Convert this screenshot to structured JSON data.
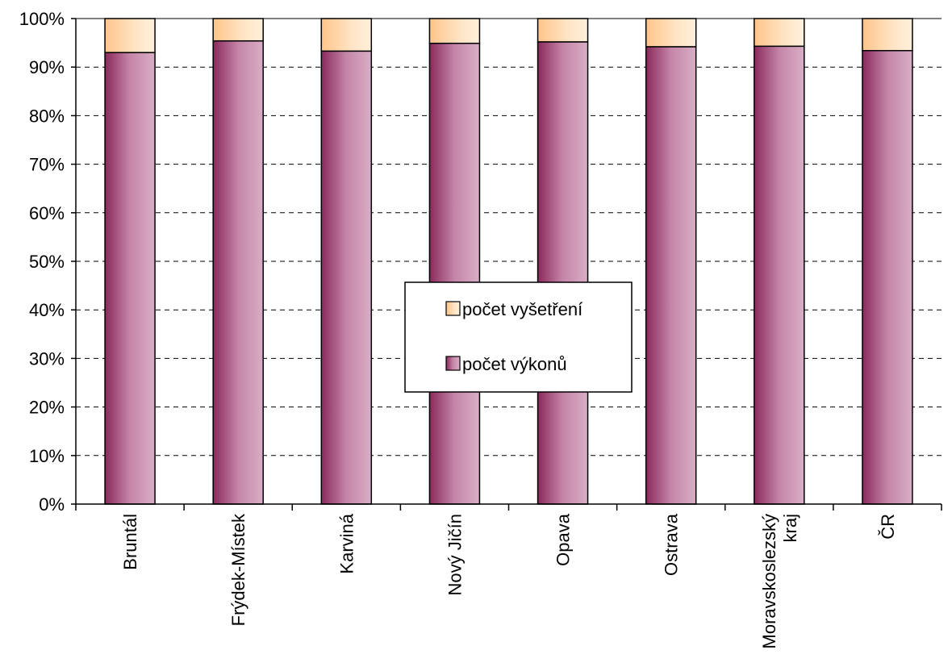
{
  "chart_data": {
    "type": "bar",
    "stacked": true,
    "normalized": true,
    "categories": [
      [
        "Bruntál"
      ],
      [
        "Frýdek-Místek"
      ],
      [
        "Karviná"
      ],
      [
        "Nový Jičín"
      ],
      [
        "Opava"
      ],
      [
        "Ostrava"
      ],
      [
        "Moravskoslezský",
        "kraj"
      ],
      [
        "ČR"
      ]
    ],
    "series": [
      {
        "name": "počet výkonů",
        "values": [
          93.0,
          95.4,
          93.3,
          94.9,
          95.2,
          94.2,
          94.3,
          93.4
        ],
        "color": "#9c3a6b"
      },
      {
        "name": "počet vyšetření",
        "values": [
          7.0,
          4.6,
          6.7,
          5.1,
          4.8,
          5.8,
          5.7,
          6.6
        ],
        "color": "#ffd4a3"
      }
    ],
    "ylim": [
      0,
      100
    ],
    "yticks": [
      "0%",
      "10%",
      "20%",
      "30%",
      "40%",
      "50%",
      "60%",
      "70%",
      "80%",
      "90%",
      "100%"
    ],
    "grid": "horizontal-dashed",
    "legend": {
      "placement": "center",
      "entries": [
        "počet vyšetření",
        "počet výkonů"
      ]
    }
  }
}
